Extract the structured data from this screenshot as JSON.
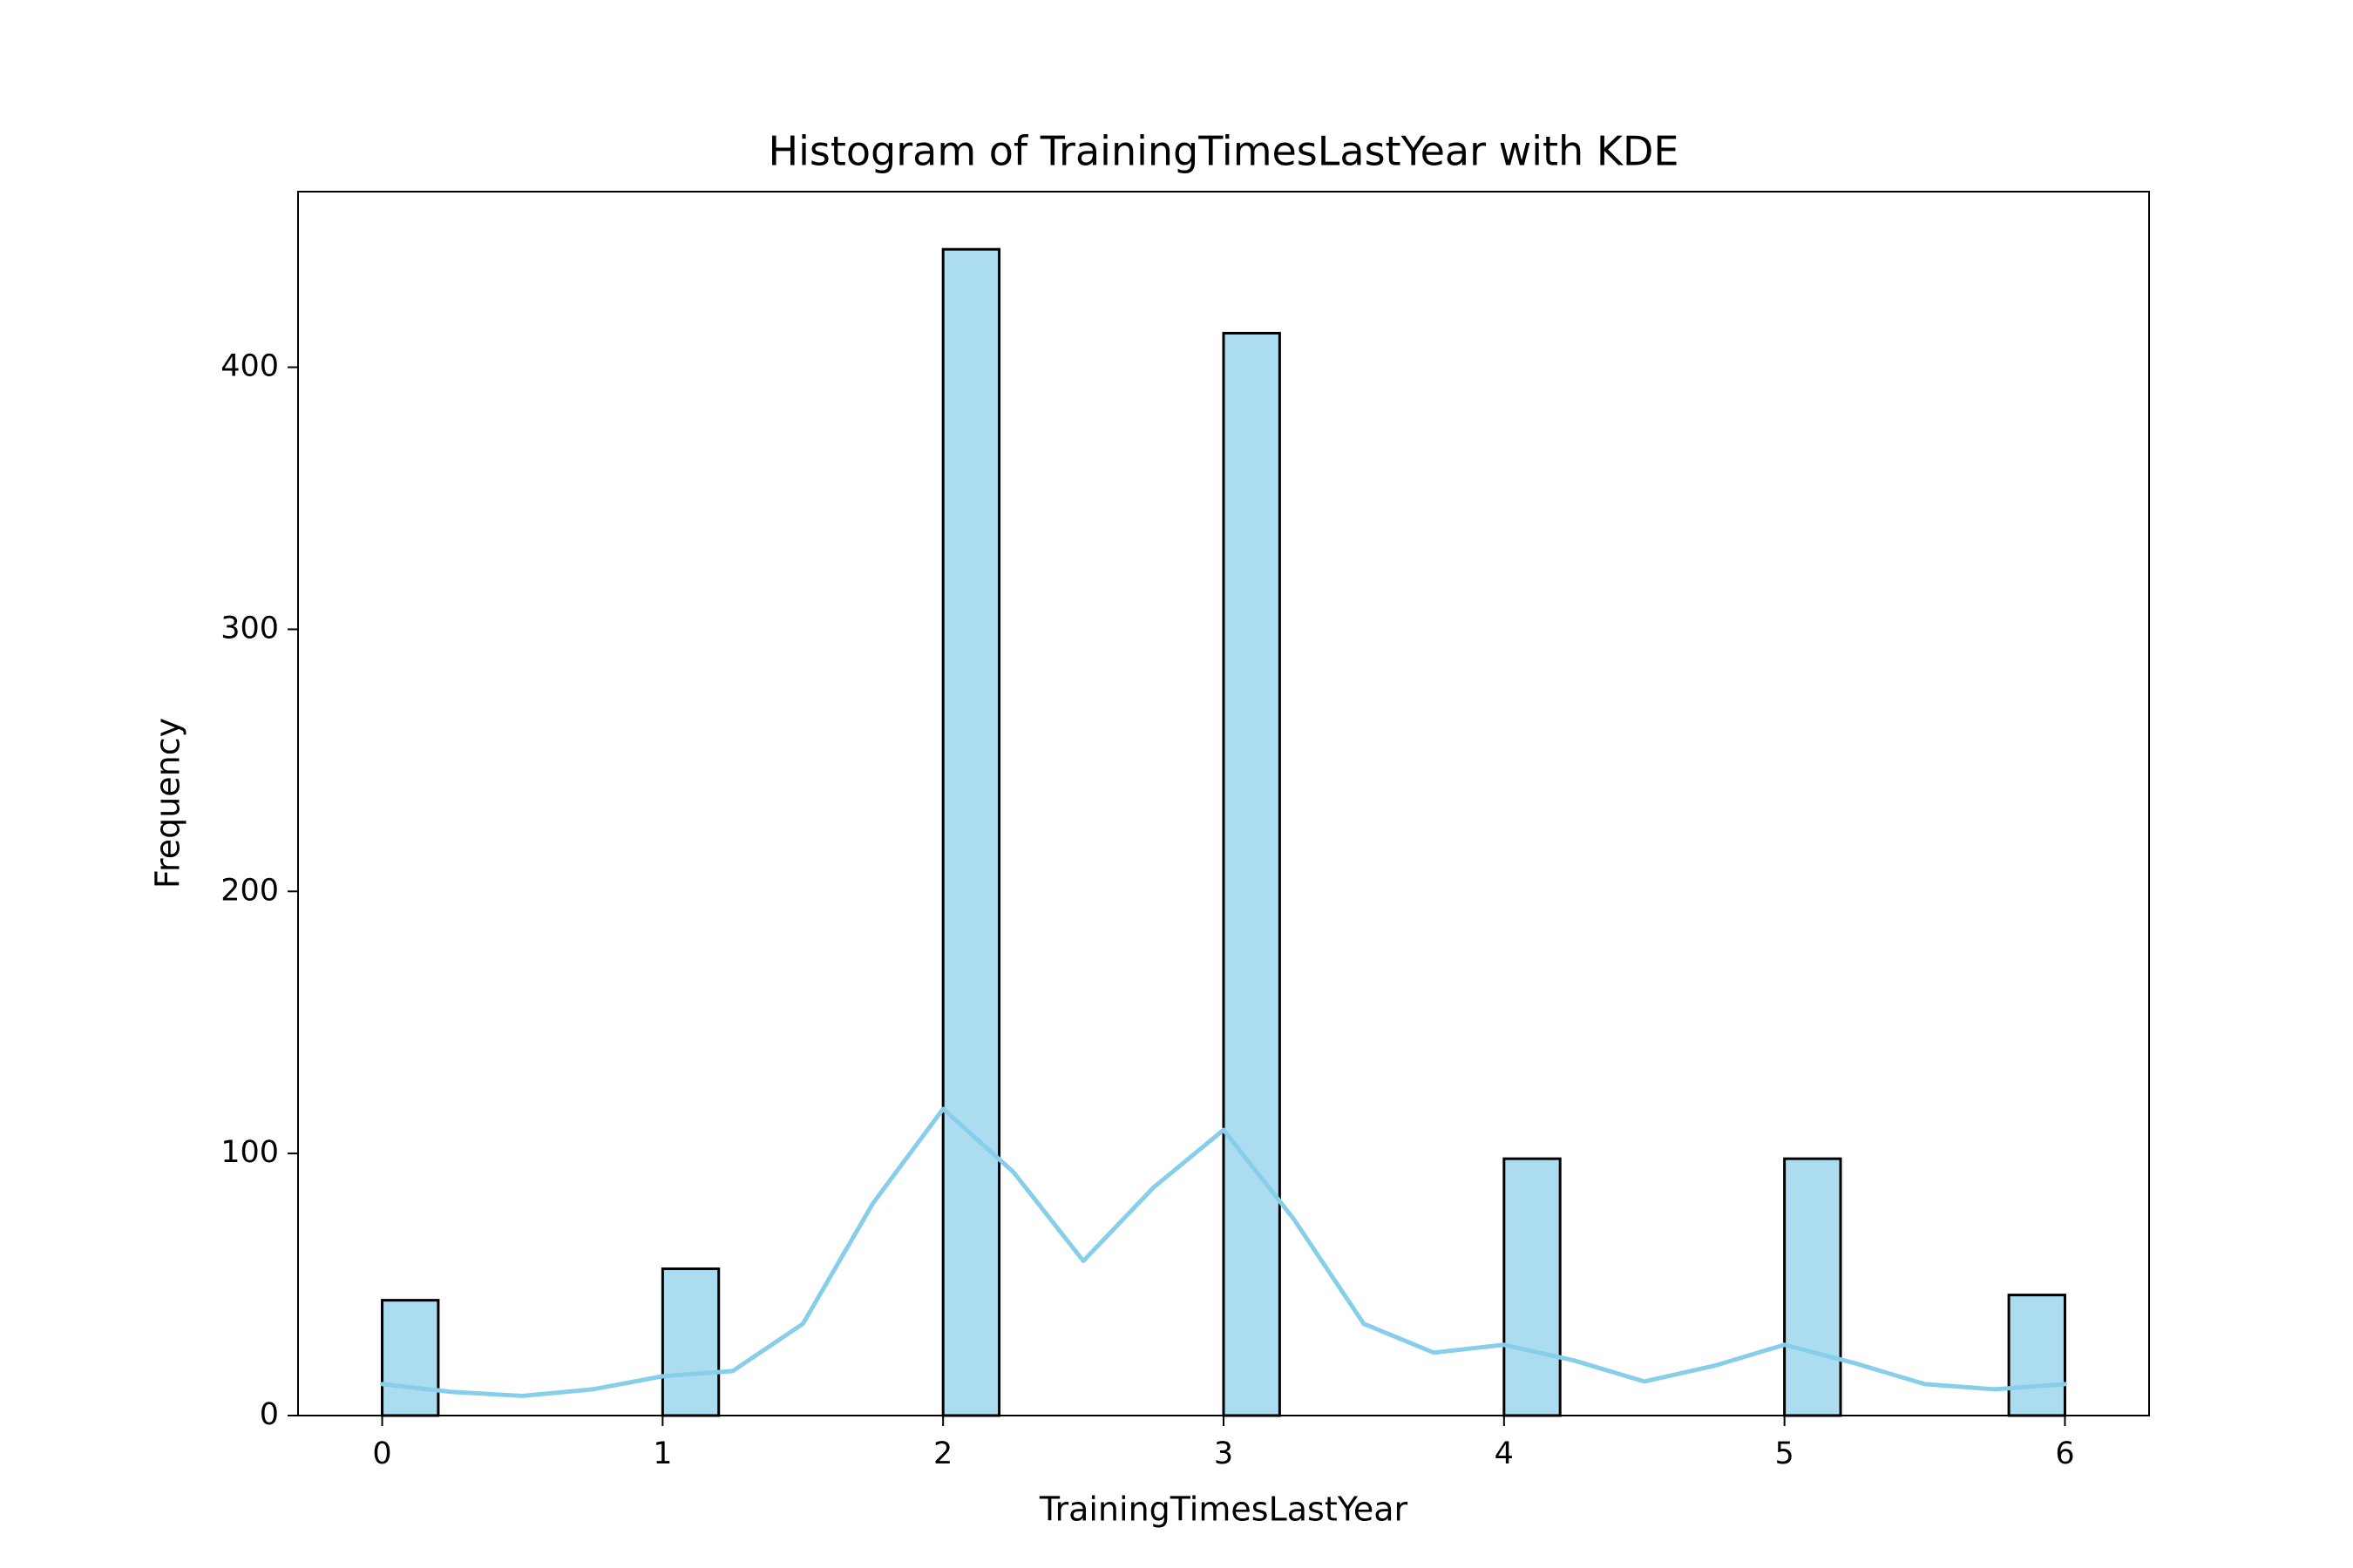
{
  "chart_data": {
    "type": "histogram",
    "title": "Histogram of TrainingTimesLastYear with KDE",
    "xlabel": "TrainingTimesLastYear",
    "ylabel": "Frequency",
    "bins": [
      0,
      0.2,
      0.4,
      0.6,
      0.8,
      1,
      1.2,
      1.4,
      1.6,
      1.8,
      2,
      2.2,
      2.4,
      2.6,
      2.8,
      3,
      3.2,
      3.4,
      3.6,
      3.8,
      4,
      4.2,
      4.4,
      4.6,
      4.8,
      5,
      5.2,
      5.4,
      5.6,
      5.8,
      6
    ],
    "counts": [
      44,
      0,
      0,
      0,
      0,
      56,
      0,
      0,
      0,
      0,
      445,
      0,
      0,
      0,
      0,
      413,
      0,
      0,
      0,
      0,
      98,
      0,
      0,
      0,
      0,
      98,
      0,
      0,
      0,
      46
    ],
    "color": "#acdcf0",
    "edgecolor": "#000000",
    "kde": {
      "color": "#87ceeb",
      "x": [
        0,
        0.25,
        0.5,
        0.75,
        1,
        1.25,
        1.5,
        1.75,
        2,
        2.25,
        2.5,
        2.75,
        3,
        3.25,
        3.5,
        3.75,
        4,
        4.25,
        4.5,
        4.75,
        5,
        5.25,
        5.5,
        5.75,
        6
      ],
      "values": [
        12,
        9,
        7.5,
        10,
        15,
        17,
        35,
        81,
        117,
        93,
        59,
        87,
        109,
        75,
        35,
        24,
        27,
        21,
        13,
        19,
        27,
        20,
        12,
        10,
        12
      ]
    },
    "xlim": [
      -0.3,
      6.3
    ],
    "ylim": [
      0,
      467
    ],
    "xticks": [
      0,
      1,
      2,
      3,
      4,
      5,
      6
    ],
    "yticks": [
      0,
      100,
      200,
      300,
      400
    ],
    "grid": false
  }
}
